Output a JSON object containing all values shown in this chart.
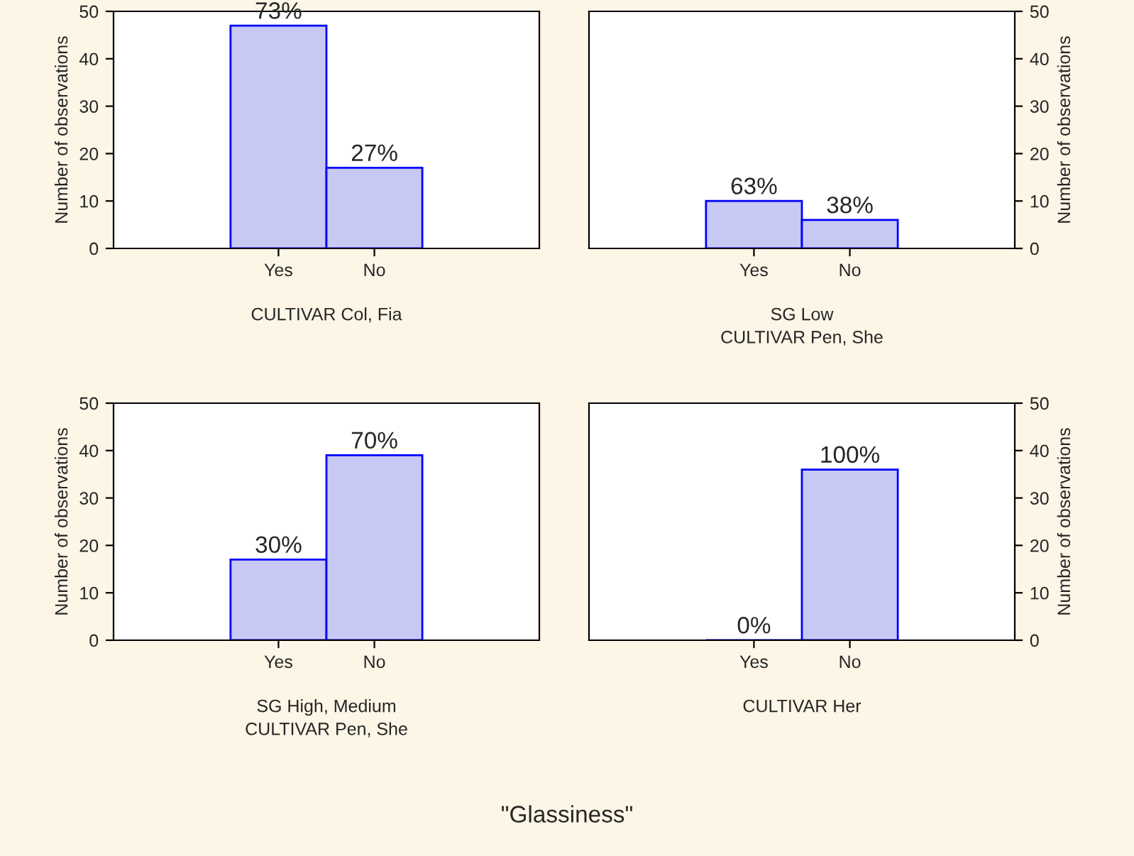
{
  "chart_data": [
    {
      "type": "bar",
      "xlabel": "CULTIVAR Col, Fia",
      "ylabel": "Number of observations",
      "categories": [
        "Yes",
        "No"
      ],
      "series": [
        {
          "color": "#c8c8f4",
          "values": [
            47,
            17
          ]
        }
      ],
      "ylim": [
        0,
        50
      ],
      "yticks": [
        0,
        10,
        20,
        30,
        40,
        50
      ],
      "grid": false,
      "legend": false,
      "annotations": [
        {
          "text": "73%",
          "x": "Yes",
          "y": 47
        },
        {
          "text": "27%",
          "x": "No",
          "y": 17
        }
      ]
    },
    {
      "type": "bar",
      "xlabel": "SG Low\nCULTIVAR Pen, She",
      "y2label": "Number of observations",
      "categories": [
        "Yes",
        "No"
      ],
      "series": [
        {
          "color": "#c8c8f4",
          "values": [
            10,
            6
          ],
          "axis": "y2"
        }
      ],
      "y2lim": [
        0,
        50
      ],
      "y2ticks": [
        0,
        10,
        20,
        30,
        40,
        50
      ],
      "grid": false,
      "legend": false,
      "annotations": [
        "63%",
        "38%"
      ]
    },
    {
      "type": "bar",
      "xlabel": "SG High, Medium\nCULTIVAR Pen, She",
      "ylabel": "Number of observations",
      "categories": [
        "Yes",
        "No"
      ],
      "series": [
        {
          "color": "#c8c8f4",
          "values": [
            17,
            39
          ]
        }
      ],
      "ylim": [
        0,
        50
      ],
      "yticks": [
        0,
        10,
        20,
        30,
        40,
        50
      ],
      "grid": false,
      "legend": false,
      "annotations": [
        {
          "text": "30%",
          "x": "Yes",
          "y": 17
        },
        {
          "text": "70%",
          "x": "No",
          "y": 39
        }
      ]
    },
    {
      "type": "bar",
      "xlabel": "CULTIVAR Her",
      "y2label": "Number of observations",
      "categories": [
        "Yes",
        "No"
      ],
      "series": [
        {
          "color": "#c8c8f4",
          "values": [
            0,
            36
          ],
          "axis": "y2"
        }
      ],
      "y2lim": [
        0,
        50
      ],
      "y2ticks": [
        0,
        10,
        20,
        30,
        40,
        50
      ],
      "grid": false,
      "legend": false,
      "annotations": [
        "0%",
        "100%",
        "\"Glassiness\""
      ]
    }
  ]
}
